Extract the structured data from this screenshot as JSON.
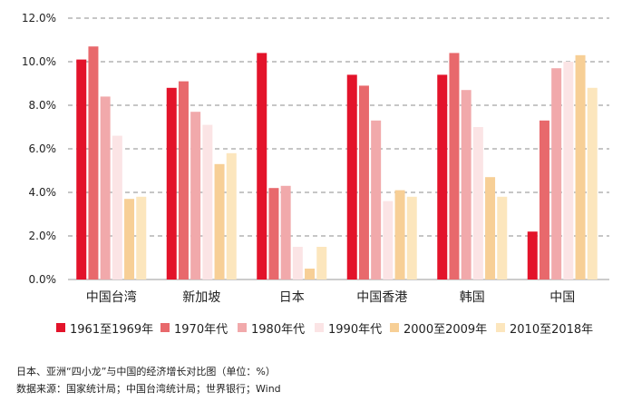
{
  "chart_data": {
    "type": "bar",
    "categories": [
      "中国台湾",
      "新加坡",
      "日本",
      "中国香港",
      "韩国",
      "中国"
    ],
    "series": [
      {
        "name": "1961至1969年",
        "color": "#e3132a",
        "values": [
          10.1,
          8.8,
          10.4,
          9.4,
          9.4,
          2.2
        ]
      },
      {
        "name": "1970年代",
        "color": "#e8696c",
        "values": [
          10.7,
          9.1,
          4.2,
          8.9,
          10.4,
          7.3
        ]
      },
      {
        "name": "1980年代",
        "color": "#f1a9ab",
        "values": [
          8.4,
          7.7,
          4.3,
          7.3,
          8.7,
          9.7
        ]
      },
      {
        "name": "1990年代",
        "color": "#fbe4e5",
        "values": [
          6.6,
          7.1,
          1.5,
          3.6,
          7.0,
          10.0
        ]
      },
      {
        "name": "2000至2009年",
        "color": "#f7cf96",
        "values": [
          3.7,
          5.3,
          0.5,
          4.1,
          4.7,
          10.3
        ]
      },
      {
        "name": "2010至2018年",
        "color": "#fce6bd",
        "values": [
          3.8,
          5.8,
          1.5,
          3.8,
          3.8,
          8.8
        ]
      }
    ],
    "ylim": [
      0,
      12
    ],
    "yticks": [
      "0.0%",
      "2.0%",
      "4.0%",
      "6.0%",
      "8.0%",
      "10.0%",
      "12.0%"
    ],
    "grid": true,
    "legend_position": "bottom"
  },
  "captions": {
    "title": "日本、亚洲“四小龙”与中国的经济增长对比图（单位：%）",
    "source": "数据来源：国家统计局；中国台湾统计局；世界银行；Wind"
  }
}
